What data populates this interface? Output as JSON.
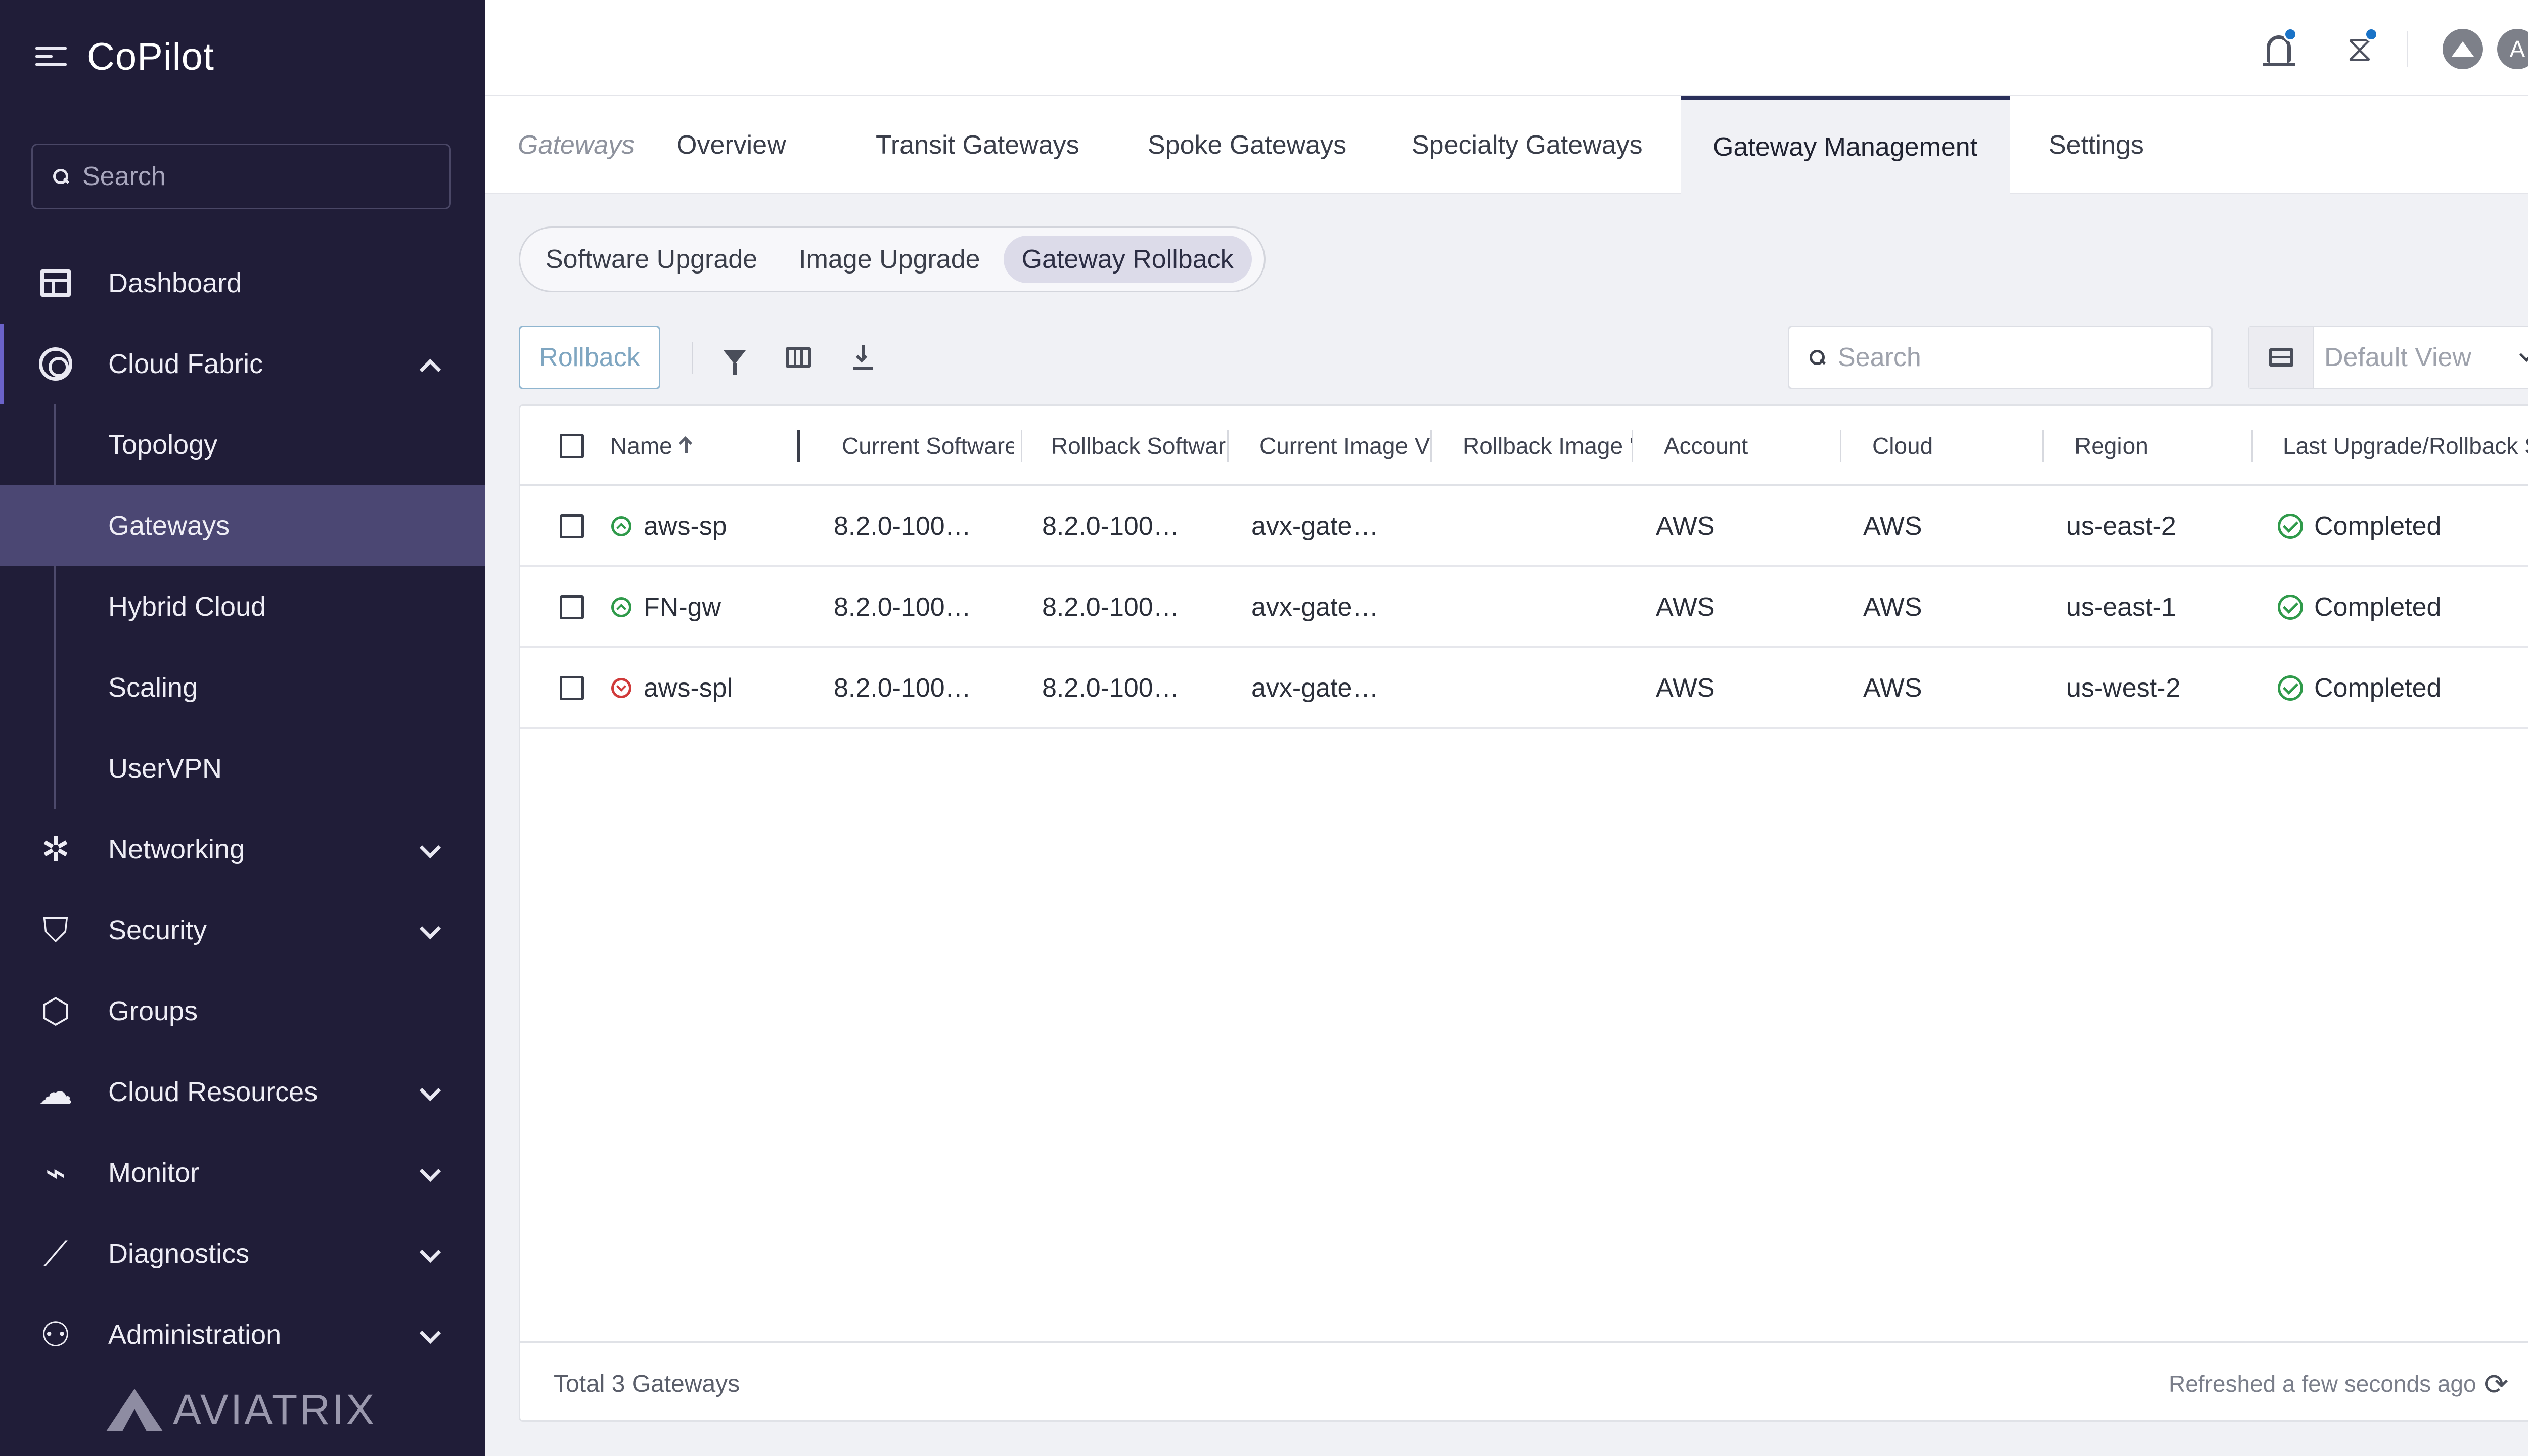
{
  "app": {
    "title": "CoPilot"
  },
  "sidebar": {
    "search_placeholder": "Search",
    "items": [
      {
        "label": "Dashboard",
        "icon": "dashboard-icon"
      },
      {
        "label": "Cloud Fabric",
        "icon": "cloud-fabric-icon",
        "expanded": true,
        "children": [
          {
            "label": "Topology"
          },
          {
            "label": "Gateways",
            "active": true
          },
          {
            "label": "Hybrid Cloud"
          },
          {
            "label": "Scaling"
          },
          {
            "label": "UserVPN"
          }
        ]
      },
      {
        "label": "Networking",
        "icon": "networking-icon"
      },
      {
        "label": "Security",
        "icon": "shield-icon"
      },
      {
        "label": "Groups",
        "icon": "groups-icon"
      },
      {
        "label": "Cloud Resources",
        "icon": "cloud-icon"
      },
      {
        "label": "Monitor",
        "icon": "monitor-icon"
      },
      {
        "label": "Diagnostics",
        "icon": "diagnostics-icon"
      },
      {
        "label": "Administration",
        "icon": "users-icon"
      }
    ],
    "logo_text": "AVIATRIX"
  },
  "topbar": {
    "avatar_initial": "A",
    "notification_dot_color": "#1a73c7"
  },
  "tabs": {
    "breadcrumb": "Gateways",
    "items": [
      {
        "label": "Overview"
      },
      {
        "label": "Transit Gateways"
      },
      {
        "label": "Spoke Gateways"
      },
      {
        "label": "Specialty Gateways"
      },
      {
        "label": "Gateway Management",
        "active": true
      },
      {
        "label": "Settings"
      }
    ]
  },
  "subtabs": [
    {
      "label": "Software Upgrade"
    },
    {
      "label": "Image Upgrade"
    },
    {
      "label": "Gateway Rollback",
      "active": true
    }
  ],
  "toolbar": {
    "rollback_label": "Rollback",
    "search_placeholder": "Search",
    "view_label": "Default View"
  },
  "table": {
    "columns": [
      "Name",
      "Current Software",
      "Rollback Softwar",
      "Current Image V",
      "Rollback Image '",
      "Account",
      "Cloud",
      "Region",
      "Last Upgrade/Rollback Stat"
    ],
    "rows": [
      {
        "name": "aws-sp",
        "state": "up",
        "current_software": "8.2.0-100…",
        "rollback_software": "8.2.0-100…",
        "current_image": "avx-gate…",
        "rollback_image": "",
        "account": "AWS",
        "cloud": "AWS",
        "region": "us-east-2",
        "status": "Completed"
      },
      {
        "name": "FN-gw",
        "state": "up",
        "current_software": "8.2.0-100…",
        "rollback_software": "8.2.0-100…",
        "current_image": "avx-gate…",
        "rollback_image": "",
        "account": "AWS",
        "cloud": "AWS",
        "region": "us-east-1",
        "status": "Completed"
      },
      {
        "name": "aws-spl",
        "state": "down",
        "current_software": "8.2.0-100…",
        "rollback_software": "8.2.0-100…",
        "current_image": "avx-gate…",
        "rollback_image": "",
        "account": "AWS",
        "cloud": "AWS",
        "region": "us-west-2",
        "status": "Completed"
      }
    ],
    "footer_total": "Total 3 Gateways",
    "footer_refreshed": "Refreshed a few seconds ago"
  }
}
